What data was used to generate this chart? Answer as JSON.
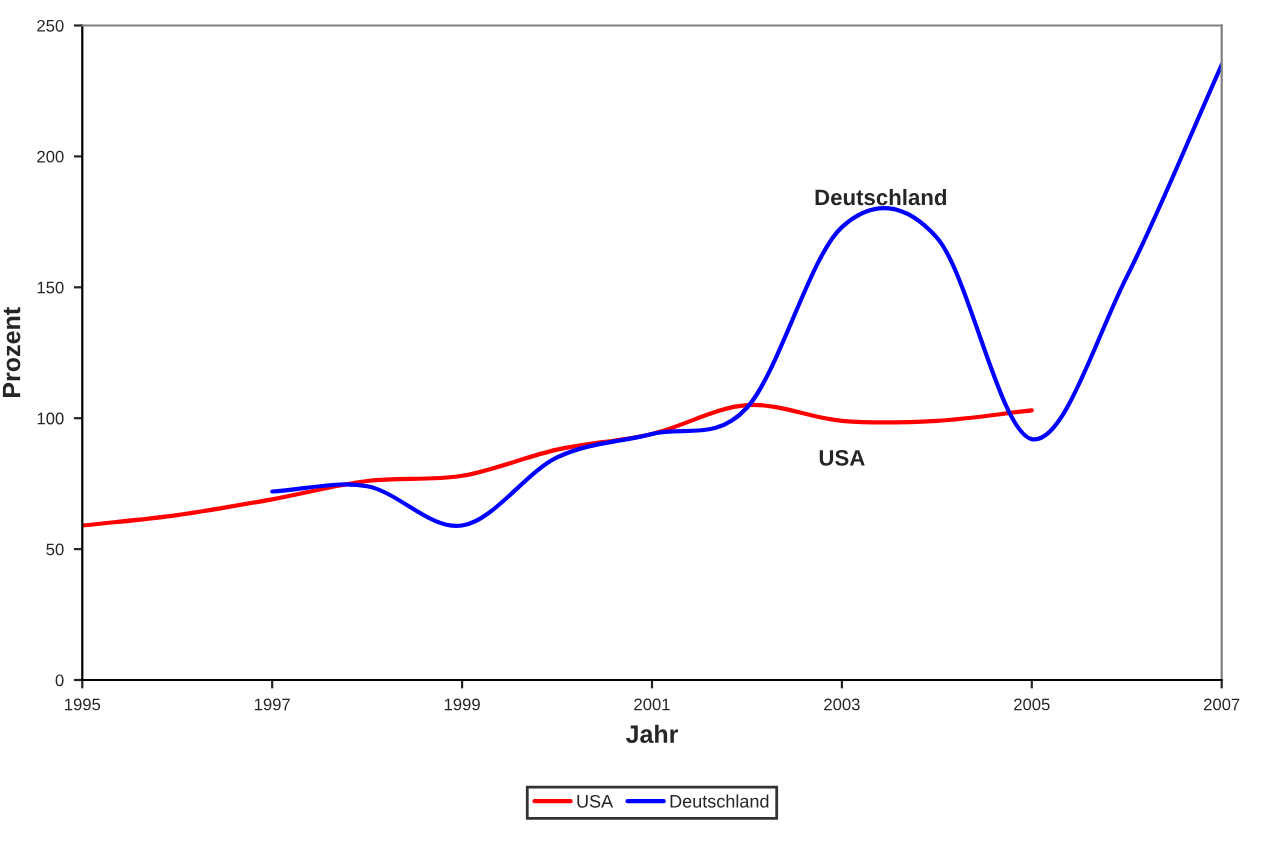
{
  "chart_data": {
    "type": "line",
    "xlabel": "Jahr",
    "ylabel": "Prozent",
    "x": [
      1995,
      1996,
      1997,
      1998,
      1999,
      2000,
      2001,
      2002,
      2003,
      2004,
      2005,
      2006,
      2007
    ],
    "series": [
      {
        "name": "USA",
        "color": "#ff0000",
        "values": [
          59,
          63,
          69,
          76,
          78,
          88,
          94,
          105,
          99,
          99,
          103,
          null,
          null
        ]
      },
      {
        "name": "Deutschland",
        "color": "#0000ff",
        "values": [
          null,
          null,
          72,
          74,
          59,
          85,
          94,
          104,
          173,
          169,
          92,
          154,
          235
        ]
      }
    ],
    "xlim": [
      1995,
      2007
    ],
    "xticks": [
      1995,
      1997,
      1999,
      2001,
      2003,
      2005,
      2007
    ],
    "ylim": [
      0,
      250
    ],
    "yticks": [
      0,
      50,
      100,
      150,
      200,
      250
    ],
    "legend": "bottom",
    "grid": false,
    "marker": "none",
    "line_style": "solid"
  }
}
